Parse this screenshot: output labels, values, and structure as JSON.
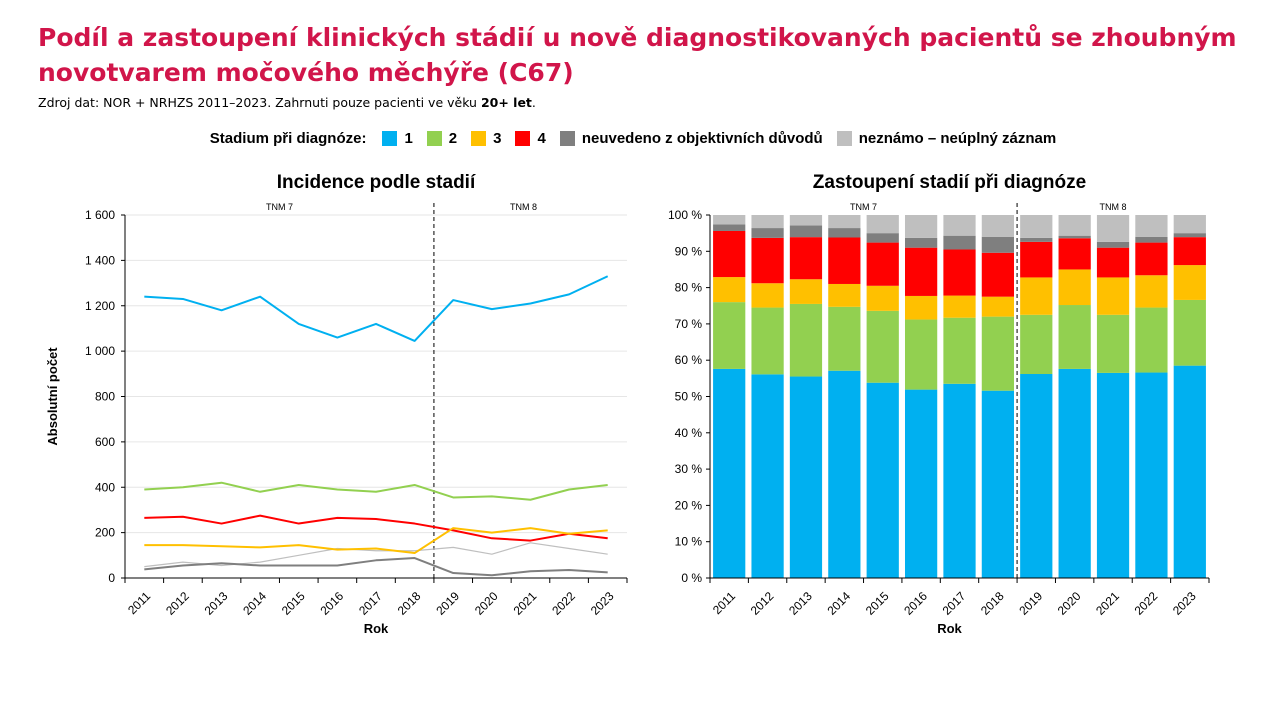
{
  "header": {
    "title_line1": "Podíl a zastoupení klinických stádií u nově diagnostikovaných pacientů se zhoubným",
    "title_line2": "novotvarem močového měchýře (C67)",
    "source_prefix": "Zdroj dat: NOR + NRHZS 2011–2023. Zahrnuti pouze pacienti ve věku ",
    "source_bold": "20+ let",
    "source_suffix": "."
  },
  "legend": {
    "title": "Stadium při diagnóze:",
    "items": [
      {
        "label": "1",
        "color": "#00b0f0"
      },
      {
        "label": "2",
        "color": "#92d050"
      },
      {
        "label": "3",
        "color": "#ffc000"
      },
      {
        "label": "4",
        "color": "#ff0000"
      },
      {
        "label": "neuvedeno z objektivních důvodů",
        "color": "#7f7f7f"
      },
      {
        "label": "neznámo – neúplný záznam",
        "color": "#bfbfbf"
      }
    ]
  },
  "chart_data": [
    {
      "type": "line",
      "title": "Incidence podle stadií",
      "xlabel": "Rok",
      "ylabel": "Absolutní počet",
      "ylim": [
        0,
        1600
      ],
      "yticks": [
        "0",
        "200",
        "400",
        "600",
        "800",
        "1 000",
        "1 200",
        "1 400",
        "1 600"
      ],
      "ytick_values": [
        0,
        200,
        400,
        600,
        800,
        1000,
        1200,
        1400,
        1600
      ],
      "categories": [
        "2011",
        "2012",
        "2013",
        "2014",
        "2015",
        "2016",
        "2017",
        "2018",
        "2019",
        "2020",
        "2021",
        "2022",
        "2023"
      ],
      "annotations": {
        "tnm7": "TNM 7",
        "tnm8": "TNM 8",
        "divider_between": [
          "2018",
          "2019"
        ]
      },
      "grid": "horizontal",
      "series": [
        {
          "name": "1",
          "color": "#00b0f0",
          "values": [
            1240,
            1230,
            1180,
            1240,
            1120,
            1060,
            1120,
            1045,
            1225,
            1185,
            1210,
            1250,
            1330
          ]
        },
        {
          "name": "2",
          "color": "#92d050",
          "values": [
            390,
            400,
            420,
            380,
            410,
            390,
            380,
            410,
            355,
            360,
            345,
            390,
            410
          ]
        },
        {
          "name": "3",
          "color": "#ffc000",
          "values": [
            145,
            145,
            140,
            135,
            145,
            125,
            130,
            110,
            220,
            200,
            220,
            195,
            210
          ]
        },
        {
          "name": "4",
          "color": "#ff0000",
          "values": [
            265,
            270,
            240,
            275,
            240,
            265,
            260,
            240,
            210,
            175,
            165,
            195,
            175
          ]
        },
        {
          "name": "neuvedeno z objektivních důvodů",
          "color": "#7f7f7f",
          "values": [
            38,
            55,
            65,
            55,
            55,
            55,
            78,
            88,
            22,
            12,
            30,
            35,
            25
          ]
        },
        {
          "name": "neznámo – neúplný záznam",
          "color": "#bfbfbf",
          "values": [
            50,
            70,
            55,
            70,
            100,
            130,
            120,
            120,
            135,
            105,
            155,
            130,
            105
          ]
        }
      ]
    },
    {
      "type": "bar",
      "stacked": true,
      "title": "Zastoupení stadií při diagnóze",
      "xlabel": "Rok",
      "ylabel": "",
      "ylim": [
        0,
        100
      ],
      "yticks": [
        "0 %",
        "10 %",
        "20 %",
        "30 %",
        "40 %",
        "50 %",
        "60 %",
        "70 %",
        "80 %",
        "90 %",
        "100 %"
      ],
      "ytick_values": [
        0,
        10,
        20,
        30,
        40,
        50,
        60,
        70,
        80,
        90,
        100
      ],
      "categories": [
        "2011",
        "2012",
        "2013",
        "2014",
        "2015",
        "2016",
        "2017",
        "2018",
        "2019",
        "2020",
        "2021",
        "2022",
        "2023"
      ],
      "annotations": {
        "tnm7": "TNM 7",
        "tnm8": "TNM 8",
        "divider_between": [
          "2018",
          "2019"
        ]
      },
      "series": [
        {
          "name": "1",
          "color": "#00b0f0",
          "values": [
            57.6,
            56.1,
            55.5,
            57.1,
            53.8,
            51.9,
            53.5,
            51.6,
            56.2,
            57.6,
            56.5,
            56.6,
            58.5
          ]
        },
        {
          "name": "2",
          "color": "#92d050",
          "values": [
            18.4,
            18.4,
            20.0,
            17.6,
            19.8,
            19.3,
            18.2,
            20.4,
            16.3,
            17.6,
            16.0,
            17.9,
            18.1
          ]
        },
        {
          "name": "3",
          "color": "#ffc000",
          "values": [
            6.9,
            6.7,
            6.8,
            6.3,
            6.9,
            6.5,
            6.1,
            5.5,
            10.3,
            9.8,
            10.3,
            8.9,
            9.6
          ]
        },
        {
          "name": "4",
          "color": "#ff0000",
          "values": [
            12.7,
            12.5,
            11.6,
            12.8,
            11.9,
            13.3,
            12.7,
            12.1,
            9.8,
            8.6,
            8.2,
            9.0,
            7.7
          ]
        },
        {
          "name": "neuvedeno z objektivních důvodů",
          "color": "#7f7f7f",
          "values": [
            1.8,
            2.7,
            3.2,
            2.6,
            2.6,
            2.7,
            3.8,
            4.4,
            1.1,
            0.7,
            1.6,
            1.6,
            1.1
          ]
        },
        {
          "name": "neznámo – neúplný záznam",
          "color": "#bfbfbf",
          "values": [
            2.6,
            3.6,
            2.9,
            3.6,
            5.0,
            6.3,
            5.7,
            6.0,
            6.3,
            5.7,
            7.4,
            6.0,
            5.0
          ]
        }
      ]
    }
  ]
}
